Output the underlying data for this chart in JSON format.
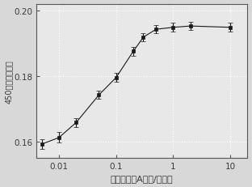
{
  "x": [
    0.005,
    0.01,
    0.02,
    0.05,
    0.1,
    0.2,
    0.3,
    0.5,
    1.0,
    2.0,
    10.0
  ],
  "y": [
    0.1592,
    0.1612,
    0.1658,
    0.1742,
    0.1795,
    0.1875,
    0.1918,
    0.1942,
    0.1948,
    0.1952,
    0.1948
  ],
  "yerr": [
    0.0014,
    0.0016,
    0.0013,
    0.0013,
    0.0014,
    0.0014,
    0.0012,
    0.0012,
    0.0014,
    0.0012,
    0.0014
  ],
  "xlabel": "绹曲霉毒素A浓度/纳摩尔",
  "ylabel": "450纳米处吸光度",
  "xlim": [
    0.004,
    20
  ],
  "ylim": [
    0.155,
    0.202
  ],
  "yticks": [
    0.16,
    0.18,
    0.2
  ],
  "xtick_labels": [
    "0.01",
    "0.1",
    "1",
    "10"
  ],
  "xtick_vals": [
    0.01,
    0.1,
    1.0,
    10.0
  ],
  "marker": "s",
  "markersize": 3.5,
  "linecolor": "#2a2a2a",
  "markercolor": "#1a1a1a",
  "facecolor": "#d8d8d8",
  "plot_bg": "#e8e8e8",
  "grid_color": "#ffffff",
  "ylabel_fontsize": 7,
  "xlabel_fontsize": 8,
  "tick_fontsize": 7.5,
  "label_color": "#3a3a3a"
}
